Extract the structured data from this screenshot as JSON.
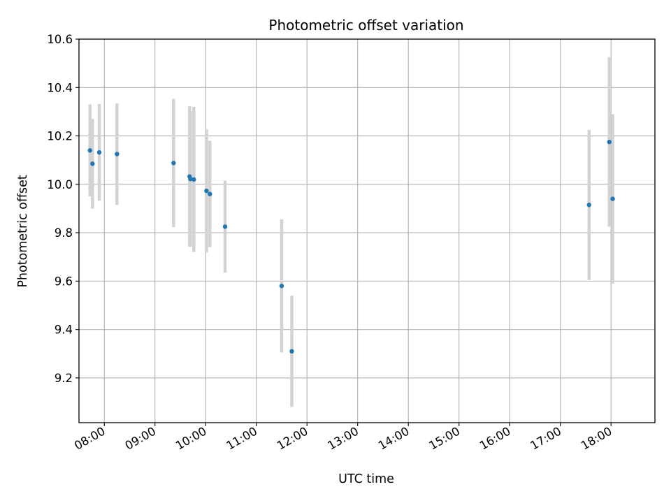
{
  "chart_data": {
    "type": "scatter",
    "title": "Photometric offset variation",
    "xlabel": "UTC time",
    "ylabel": "Photometric offset",
    "xlim": [
      "07:30",
      "18:52"
    ],
    "ylim": [
      9.015,
      10.6
    ],
    "x_ticks": [
      "08:00",
      "09:00",
      "10:00",
      "11:00",
      "12:00",
      "13:00",
      "14:00",
      "15:00",
      "16:00",
      "17:00",
      "18:00"
    ],
    "y_ticks": [
      9.2,
      9.4,
      9.6,
      9.8,
      10.0,
      10.2,
      10.4,
      10.6
    ],
    "y_tick_labels": [
      "9.2",
      "9.4",
      "9.6",
      "9.8",
      "10.0",
      "10.2",
      "10.4",
      "10.6"
    ],
    "grid": true,
    "colors": {
      "point": "#1f77b4",
      "errorbar": "#d3d3d3",
      "grid": "#b0b0b0"
    },
    "series": [
      {
        "points": [
          {
            "x": "07:43",
            "y": 10.14,
            "yerr": 0.19
          },
          {
            "x": "07:46",
            "y": 10.085,
            "yerr": 0.185
          },
          {
            "x": "07:54",
            "y": 10.132,
            "yerr": 0.2
          },
          {
            "x": "08:15",
            "y": 10.125,
            "yerr": 0.21
          },
          {
            "x": "09:22",
            "y": 10.088,
            "yerr": 0.265
          },
          {
            "x": "09:41",
            "y": 10.032,
            "yerr": 0.29
          },
          {
            "x": "09:42",
            "y": 10.022,
            "yerr": 0.28
          },
          {
            "x": "09:46",
            "y": 10.02,
            "yerr": 0.3
          },
          {
            "x": "10:01",
            "y": 9.973,
            "yerr": 0.255
          },
          {
            "x": "10:05",
            "y": 9.96,
            "yerr": 0.22
          },
          {
            "x": "10:23",
            "y": 9.825,
            "yerr": 0.19
          },
          {
            "x": "11:30",
            "y": 9.58,
            "yerr": 0.275
          },
          {
            "x": "11:42",
            "y": 9.31,
            "yerr": 0.23
          },
          {
            "x": "17:34",
            "y": 9.915,
            "yerr": 0.31
          },
          {
            "x": "17:58",
            "y": 10.175,
            "yerr": 0.35
          },
          {
            "x": "18:02",
            "y": 9.94,
            "yerr": 0.35
          }
        ]
      }
    ]
  }
}
